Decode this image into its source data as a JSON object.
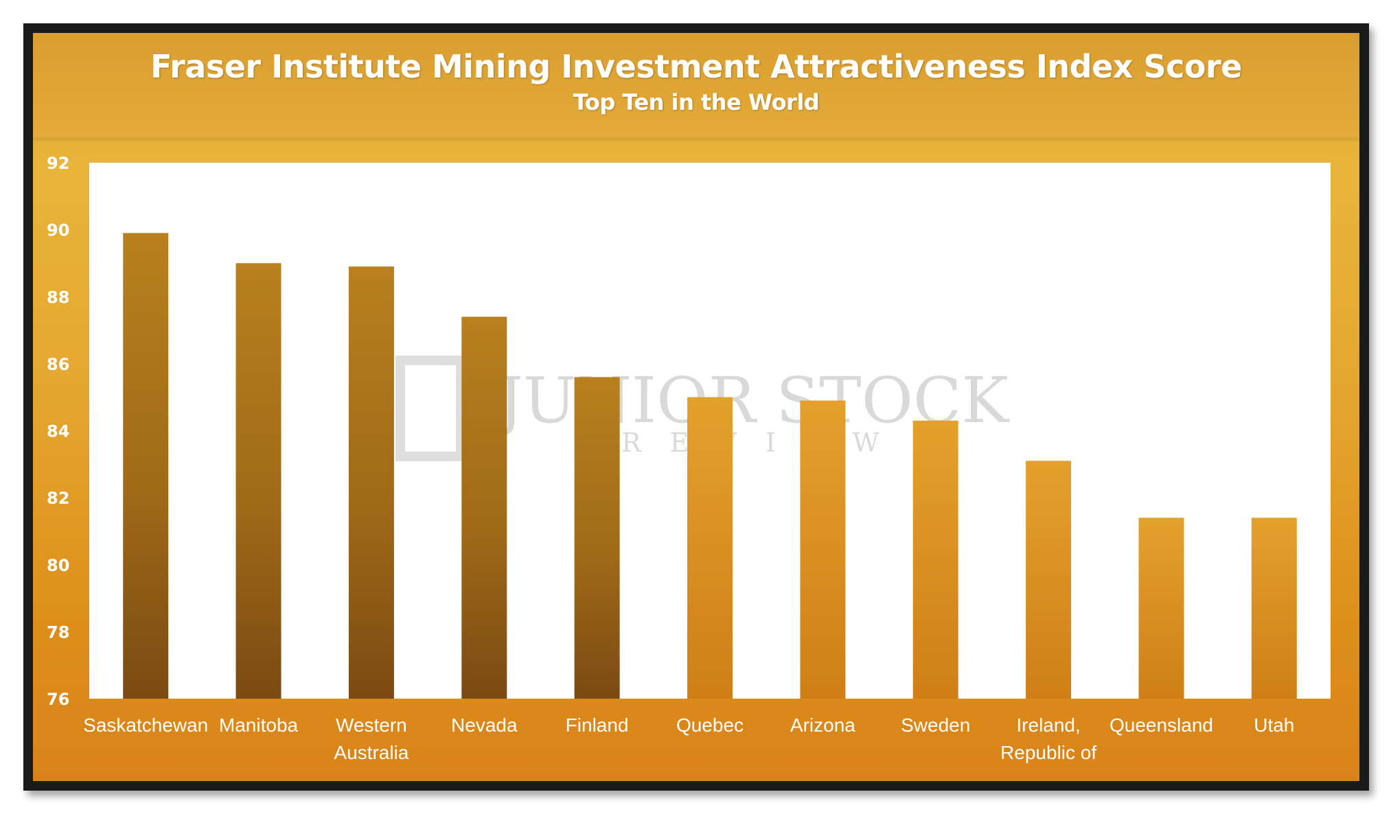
{
  "chart_data": {
    "type": "bar",
    "title": "Fraser Institute Mining Investment Attractiveness Index Score",
    "subtitle": "Top Ten in the World",
    "categories": [
      "Saskatchewan",
      "Manitoba",
      "Western Australia",
      "Nevada",
      "Finland",
      "Quebec",
      "Arizona",
      "Sweden",
      "Ireland, Republic of",
      "Queensland",
      "Utah"
    ],
    "category_lines": [
      [
        "Saskatchewan"
      ],
      [
        "Manitoba"
      ],
      [
        "Western",
        "Australia"
      ],
      [
        "Nevada"
      ],
      [
        "Finland"
      ],
      [
        "Quebec"
      ],
      [
        "Arizona"
      ],
      [
        "Sweden"
      ],
      [
        "Ireland,",
        "Republic of"
      ],
      [
        "Queensland"
      ],
      [
        "Utah"
      ]
    ],
    "values": [
      89.9,
      89.0,
      88.9,
      87.4,
      85.6,
      85.0,
      84.9,
      84.3,
      83.1,
      81.4,
      81.4
    ],
    "ylim": [
      76,
      92
    ],
    "yticks": [
      76,
      78,
      80,
      82,
      84,
      86,
      88,
      90,
      92
    ],
    "grid": false,
    "legend": "none",
    "colors": {
      "bar_top": "#b8801e",
      "bar_bottom": "#7a4a12",
      "plot_background": "#ffffff"
    }
  },
  "watermark": {
    "main": "JUNIOR STOCK",
    "sub": "REVIEW"
  }
}
